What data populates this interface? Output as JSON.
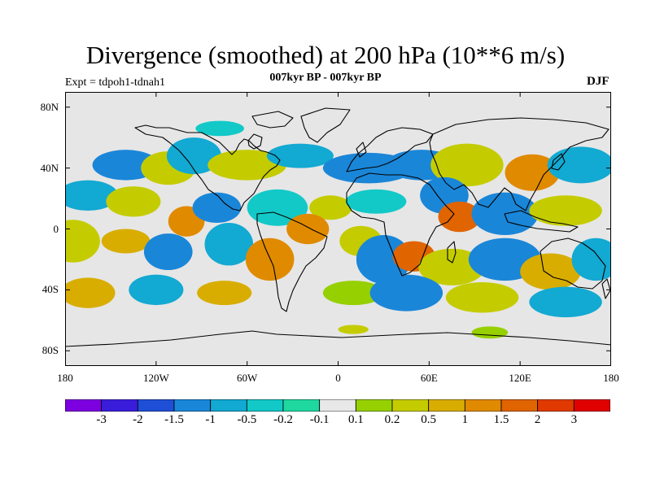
{
  "title": "Divergence (smoothed) at 200 hPa (10**6 m/s)",
  "experiment": "Expt = tdpoh1-tdnah1",
  "period": "007kyr BP - 007kyr BP",
  "season": "DJF",
  "map": {
    "type": "contour-fill",
    "projection": "cylindrical-equidistant",
    "lon_range": [
      -180,
      180
    ],
    "lat_range": [
      -90,
      90
    ],
    "background_color": "#e6e6e6",
    "coast_color": "#000000",
    "y_ticks": [
      {
        "label": "80N",
        "lat": 80
      },
      {
        "label": "40N",
        "lat": 40
      },
      {
        "label": "0",
        "lat": 0
      },
      {
        "label": "40S",
        "lat": -40
      },
      {
        "label": "80S",
        "lat": -80
      }
    ],
    "x_ticks": [
      {
        "label": "180",
        "lon": -180
      },
      {
        "label": "120W",
        "lon": -120
      },
      {
        "label": "60W",
        "lon": -60
      },
      {
        "label": "0",
        "lon": 0
      },
      {
        "label": "60E",
        "lon": 60
      },
      {
        "label": "120E",
        "lon": 120
      },
      {
        "label": "180",
        "lon": 180
      }
    ],
    "regions": [
      {
        "lon": -140,
        "lat": 42,
        "level": 3,
        "w": 22,
        "h": 10
      },
      {
        "lon": -112,
        "lat": 40,
        "level": 9,
        "w": 18,
        "h": 11
      },
      {
        "lon": -95,
        "lat": 48,
        "level": 4,
        "w": 18,
        "h": 12
      },
      {
        "lon": -60,
        "lat": 42,
        "level": 9,
        "w": 26,
        "h": 10
      },
      {
        "lon": -25,
        "lat": 48,
        "level": 4,
        "w": 22,
        "h": 8
      },
      {
        "lon": -78,
        "lat": 66,
        "level": 5,
        "w": 16,
        "h": 5
      },
      {
        "lon": 20,
        "lat": 40,
        "level": 3,
        "w": 30,
        "h": 10
      },
      {
        "lon": 55,
        "lat": 42,
        "level": 3,
        "w": 24,
        "h": 10
      },
      {
        "lon": 85,
        "lat": 42,
        "level": 9,
        "w": 24,
        "h": 14
      },
      {
        "lon": 128,
        "lat": 37,
        "level": 11,
        "w": 18,
        "h": 12
      },
      {
        "lon": 160,
        "lat": 42,
        "level": 4,
        "w": 22,
        "h": 12
      },
      {
        "lon": -165,
        "lat": 22,
        "level": 4,
        "w": 20,
        "h": 10
      },
      {
        "lon": -135,
        "lat": 18,
        "level": 9,
        "w": 18,
        "h": 10
      },
      {
        "lon": -100,
        "lat": 5,
        "level": 11,
        "w": 12,
        "h": 10
      },
      {
        "lon": -80,
        "lat": 14,
        "level": 3,
        "w": 16,
        "h": 10
      },
      {
        "lon": -40,
        "lat": 14,
        "level": 5,
        "w": 20,
        "h": 12
      },
      {
        "lon": -5,
        "lat": 14,
        "level": 9,
        "w": 14,
        "h": 8
      },
      {
        "lon": 25,
        "lat": 18,
        "level": 5,
        "w": 20,
        "h": 8
      },
      {
        "lon": 70,
        "lat": 22,
        "level": 3,
        "w": 16,
        "h": 12
      },
      {
        "lon": 80,
        "lat": 8,
        "level": 12,
        "w": 14,
        "h": 10
      },
      {
        "lon": 110,
        "lat": 10,
        "level": 3,
        "w": 22,
        "h": 14
      },
      {
        "lon": 150,
        "lat": 12,
        "level": 9,
        "w": 24,
        "h": 10
      },
      {
        "lon": -175,
        "lat": -8,
        "level": 9,
        "w": 18,
        "h": 14
      },
      {
        "lon": -140,
        "lat": -8,
        "level": 10,
        "w": 16,
        "h": 8
      },
      {
        "lon": -112,
        "lat": -15,
        "level": 3,
        "w": 16,
        "h": 12
      },
      {
        "lon": -72,
        "lat": -10,
        "level": 4,
        "w": 16,
        "h": 14
      },
      {
        "lon": -45,
        "lat": -20,
        "level": 11,
        "w": 16,
        "h": 14
      },
      {
        "lon": -20,
        "lat": 0,
        "level": 11,
        "w": 14,
        "h": 10
      },
      {
        "lon": 15,
        "lat": -8,
        "level": 9,
        "w": 14,
        "h": 10
      },
      {
        "lon": 30,
        "lat": -20,
        "level": 3,
        "w": 18,
        "h": 16
      },
      {
        "lon": 50,
        "lat": -18,
        "level": 12,
        "w": 14,
        "h": 10
      },
      {
        "lon": 75,
        "lat": -25,
        "level": 9,
        "w": 22,
        "h": 12
      },
      {
        "lon": 110,
        "lat": -20,
        "level": 3,
        "w": 24,
        "h": 14
      },
      {
        "lon": 140,
        "lat": -28,
        "level": 10,
        "w": 20,
        "h": 12
      },
      {
        "lon": 170,
        "lat": -20,
        "level": 4,
        "w": 16,
        "h": 14
      },
      {
        "lon": -165,
        "lat": -42,
        "level": 10,
        "w": 18,
        "h": 10
      },
      {
        "lon": -120,
        "lat": -40,
        "level": 4,
        "w": 18,
        "h": 10
      },
      {
        "lon": -75,
        "lat": -42,
        "level": 10,
        "w": 18,
        "h": 8
      },
      {
        "lon": 10,
        "lat": -42,
        "level": 8,
        "w": 20,
        "h": 8
      },
      {
        "lon": 45,
        "lat": -42,
        "level": 3,
        "w": 24,
        "h": 12
      },
      {
        "lon": 95,
        "lat": -45,
        "level": 9,
        "w": 24,
        "h": 10
      },
      {
        "lon": 150,
        "lat": -48,
        "level": 4,
        "w": 24,
        "h": 10
      },
      {
        "lon": 100,
        "lat": -68,
        "level": 8,
        "w": 12,
        "h": 4
      },
      {
        "lon": 10,
        "lat": -66,
        "level": 9,
        "w": 10,
        "h": 3
      }
    ]
  },
  "colorbar": {
    "colors": [
      "#7d00e0",
      "#3a1ddb",
      "#1f4fd6",
      "#1a86d8",
      "#12a9d2",
      "#12c9c8",
      "#1fd8a0",
      "#e8e8e8",
      "#96d000",
      "#c4cc00",
      "#d8ad00",
      "#e08a00",
      "#e06400",
      "#e03a00",
      "#e00000"
    ],
    "labels": [
      "-3",
      "-2",
      "-1.5",
      "-1",
      "-0.5",
      "-0.2",
      "-0.1",
      "0.1",
      "0.2",
      "0.5",
      "1",
      "1.5",
      "2",
      "3"
    ]
  }
}
